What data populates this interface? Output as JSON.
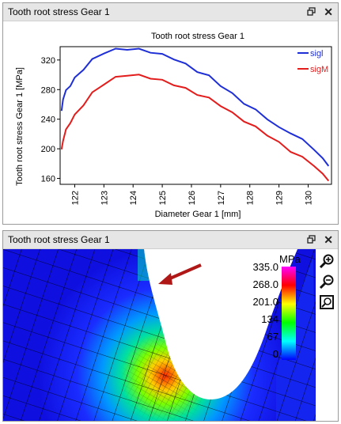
{
  "top_panel": {
    "title": "Tooth root stress Gear 1",
    "float_icon": "restore-window-icon",
    "close_glyph": "✕"
  },
  "bottom_panel": {
    "title": "Tooth root stress Gear 1",
    "float_icon": "restore-window-icon",
    "close_glyph": "✕",
    "legend": {
      "unit": "MPa",
      "labels": [
        "335.0",
        "268.0",
        "201.0",
        "134",
        "67",
        "0"
      ],
      "colors": [
        "#ff00ff",
        "#ff0000",
        "#ffff00",
        "#00ff00",
        "#00ffff",
        "#0000ff"
      ]
    },
    "tools": [
      "zoom-in-icon",
      "zoom-out-icon",
      "zoom-fit-icon"
    ]
  },
  "chart_data": {
    "type": "line",
    "title": "Tooth root stress Gear 1",
    "xlabel": "Diameter Gear 1 [mm]",
    "ylabel": "Tooth root stress Gear 1 [MPa]",
    "xlim": [
      121.5,
      130.8
    ],
    "ylim": [
      152,
      338
    ],
    "xticks": [
      122,
      123,
      124,
      125,
      126,
      127,
      128,
      129,
      130
    ],
    "yticks": [
      160,
      200,
      240,
      280,
      320
    ],
    "legend_position": "top-right",
    "series": [
      {
        "name": "sigl",
        "color": "#1f2fd6",
        "x": [
          121.55,
          121.6,
          121.7,
          121.85,
          122.0,
          122.3,
          122.6,
          123.0,
          123.4,
          123.8,
          124.2,
          124.6,
          125.0,
          125.4,
          125.8,
          126.2,
          126.6,
          127.0,
          127.4,
          127.8,
          128.2,
          128.6,
          129.0,
          129.4,
          129.8,
          130.2,
          130.5,
          130.7
        ],
        "y": [
          250,
          268,
          278,
          286,
          295,
          308,
          320,
          330,
          334,
          335,
          334,
          331,
          327,
          322,
          314,
          305,
          298,
          286,
          274,
          262,
          252,
          241,
          228,
          222,
          212,
          200,
          186,
          178
        ]
      },
      {
        "name": "sigM",
        "color": "#e31c1c",
        "x": [
          121.55,
          121.6,
          121.7,
          121.85,
          122.0,
          122.3,
          122.6,
          123.0,
          123.4,
          123.8,
          124.2,
          124.6,
          125.0,
          125.4,
          125.8,
          126.2,
          126.6,
          127.0,
          127.4,
          127.8,
          128.2,
          128.6,
          129.0,
          129.4,
          129.8,
          130.2,
          130.5,
          130.7
        ],
        "y": [
          198,
          212,
          225,
          236,
          245,
          260,
          275,
          288,
          296,
          300,
          299,
          296,
          292,
          287,
          281,
          274,
          268,
          259,
          248,
          238,
          229,
          219,
          208,
          197,
          188,
          178,
          165,
          158
        ]
      }
    ]
  }
}
